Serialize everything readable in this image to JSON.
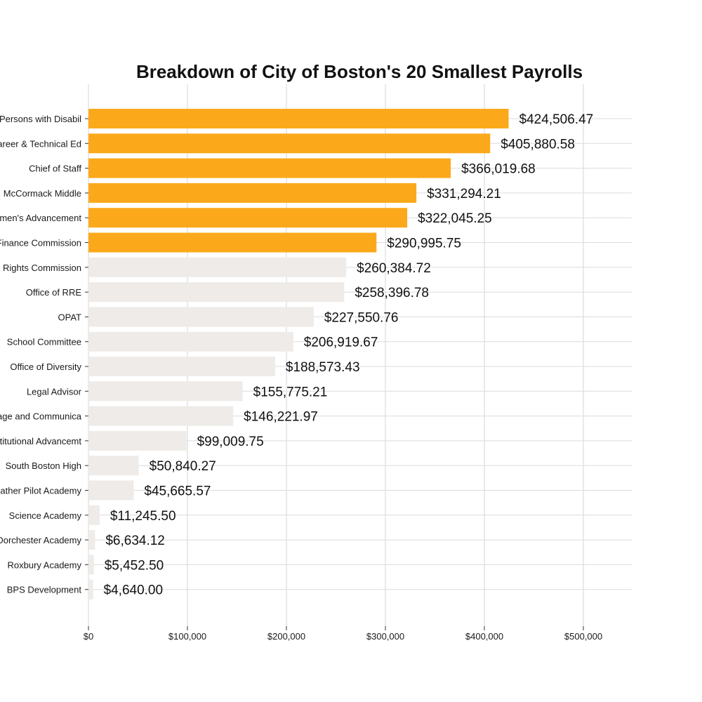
{
  "chart_data": {
    "type": "bar",
    "orientation": "horizontal",
    "title": "Breakdown of City of Boston's 20 Smallest Payrolls",
    "xlabel": "",
    "ylabel": "",
    "xlim": [
      0,
      550000
    ],
    "grid": true,
    "x_ticks": [
      0,
      100000,
      200000,
      300000,
      400000,
      500000
    ],
    "x_tick_labels": [
      "$0",
      "$100,000",
      "$200,000",
      "$300,000",
      "$400,000",
      "$500,000"
    ],
    "highlight_color": "#FBA91B",
    "base_color": "#EEEBE8",
    "categories": [
      "Persons with Disabil",
      "Career & Technical Ed",
      "Chief of Staff",
      "McCormack Middle",
      "Women's Advancement",
      "Finance Commission",
      "Human Rights Commission",
      "Office of RRE",
      "OPAT",
      "School Committee",
      "Office of Diversity",
      "Legal Advisor",
      "Language and Communica",
      "Institutional Advancemt",
      "South Boston High",
      "Mather Pilot  Academy",
      "Science Academy",
      "Dorchester Academy",
      "Roxbury Academy",
      "BPS Development"
    ],
    "values": [
      424506.47,
      405880.58,
      366019.68,
      331294.21,
      322045.25,
      290995.75,
      260384.72,
      258396.78,
      227550.76,
      206919.67,
      188573.43,
      155775.21,
      146221.97,
      99009.75,
      50840.27,
      45665.57,
      11245.5,
      6634.12,
      5452.5,
      4640.0
    ],
    "value_labels": [
      "$424,506.47",
      "$405,880.58",
      "$366,019.68",
      "$331,294.21",
      "$322,045.25",
      "$290,995.75",
      "$260,384.72",
      "$258,396.78",
      "$227,550.76",
      "$206,919.67",
      "$188,573.43",
      "$155,775.21",
      "$146,221.97",
      "$99,009.75",
      "$50,840.27",
      "$45,665.57",
      "$11,245.50",
      "$6,634.12",
      "$5,452.50",
      "$4,640.00"
    ],
    "highlighted": [
      true,
      true,
      true,
      true,
      true,
      true,
      false,
      false,
      false,
      false,
      false,
      false,
      false,
      false,
      false,
      false,
      false,
      false,
      false,
      false
    ]
  }
}
